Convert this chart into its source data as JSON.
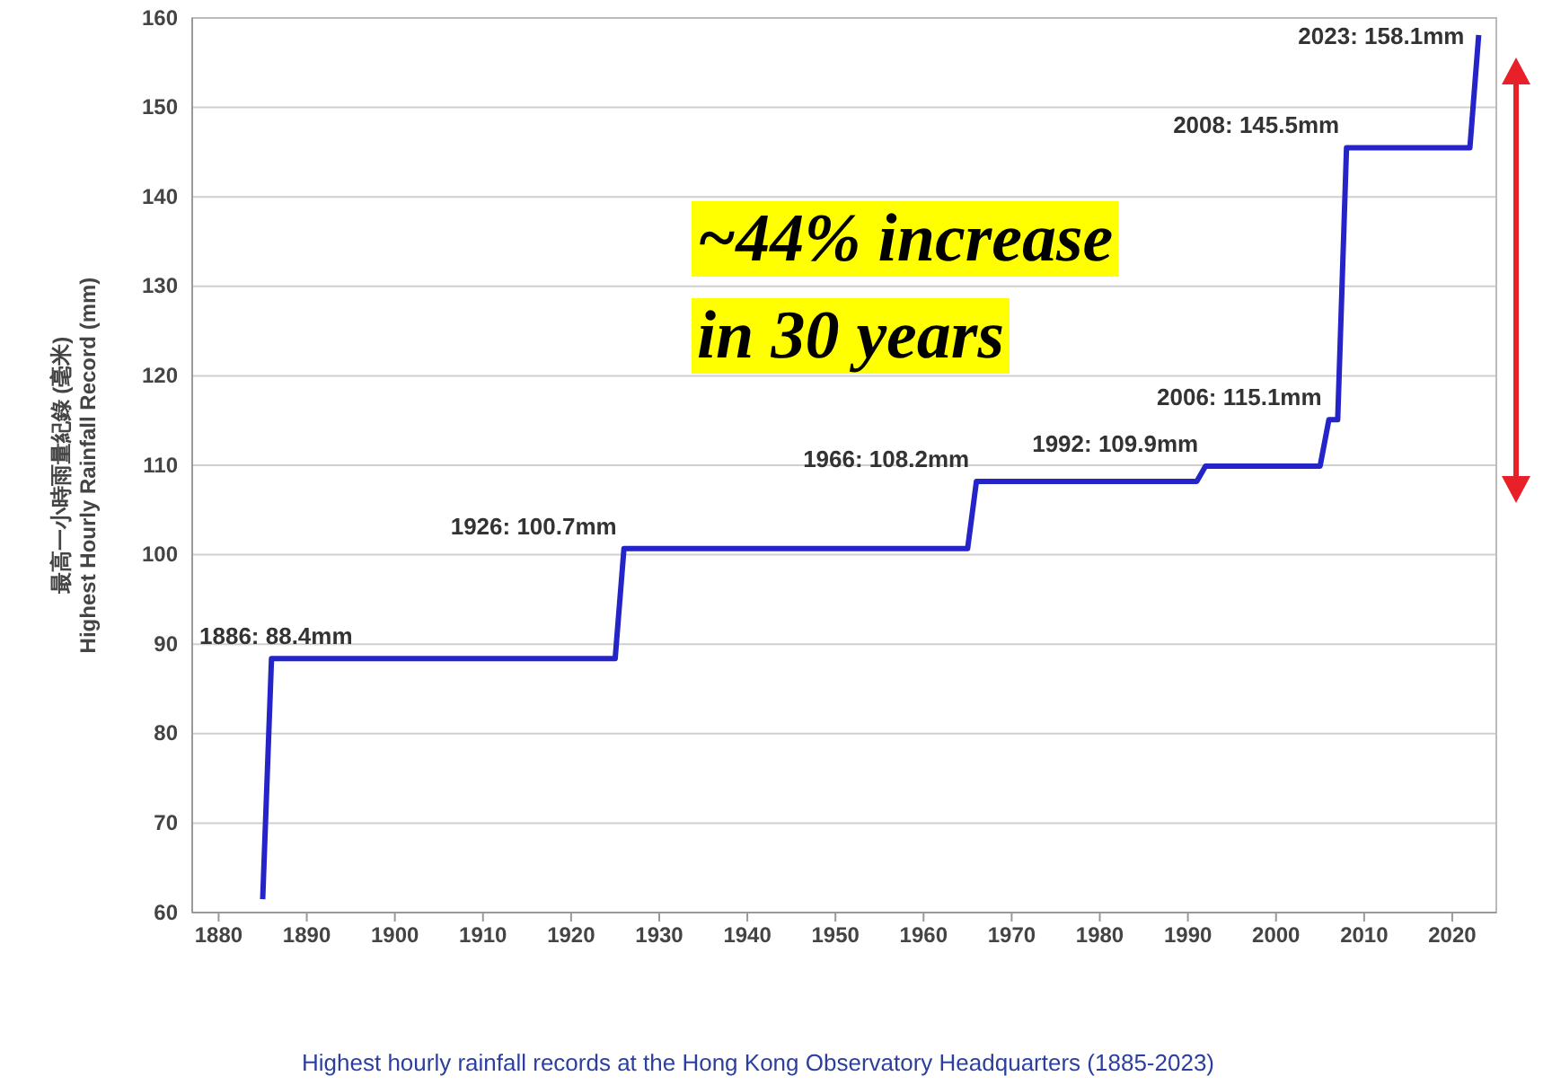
{
  "chart_data": {
    "type": "line",
    "ylabel": "最高一小時雨量紀錄 (毫米)\nHighest Hourly Rainfall Record (mm)",
    "x": [
      1885,
      1886,
      1925,
      1926,
      1965,
      1966,
      1991,
      1992,
      2005,
      2006,
      2007,
      2008,
      2022,
      2023
    ],
    "series": [
      {
        "color": "#2424c8",
        "values": [
          61.5,
          88.4,
          88.4,
          100.7,
          100.7,
          108.2,
          108.2,
          109.9,
          109.9,
          115.1,
          115.1,
          145.5,
          145.5,
          158.1
        ]
      }
    ],
    "xlim": [
      1877,
      2025
    ],
    "xticks": [
      1880,
      1890,
      1900,
      1910,
      1920,
      1930,
      1940,
      1950,
      1960,
      1970,
      1980,
      1990,
      2000,
      2010,
      2020
    ],
    "ylim": [
      60,
      160
    ],
    "yticks": [
      60,
      70,
      80,
      90,
      100,
      110,
      120,
      130,
      140,
      150,
      160
    ],
    "grid": "y",
    "marker": "none",
    "line_style": "solid",
    "annotations": [
      {
        "text": "1886: 88.4mm",
        "x": 1886,
        "y": 88.4
      },
      {
        "text": "1926: 100.7mm",
        "x": 1926,
        "y": 100.7
      },
      {
        "text": "1966: 108.2mm",
        "x": 1966,
        "y": 108.2
      },
      {
        "text": "1992: 109.9mm",
        "x": 1992,
        "y": 109.9
      },
      {
        "text": "2006: 115.1mm",
        "x": 2006,
        "y": 115.1
      },
      {
        "text": "2008: 145.5mm",
        "x": 2008,
        "y": 145.5
      },
      {
        "text": "2023: 158.1mm",
        "x": 2023,
        "y": 158.1
      },
      "~44% increase",
      "in 30 years",
      "Highest hourly rainfall records at the Hong Kong Observatory Headquarters (1885-2023)"
    ]
  }
}
